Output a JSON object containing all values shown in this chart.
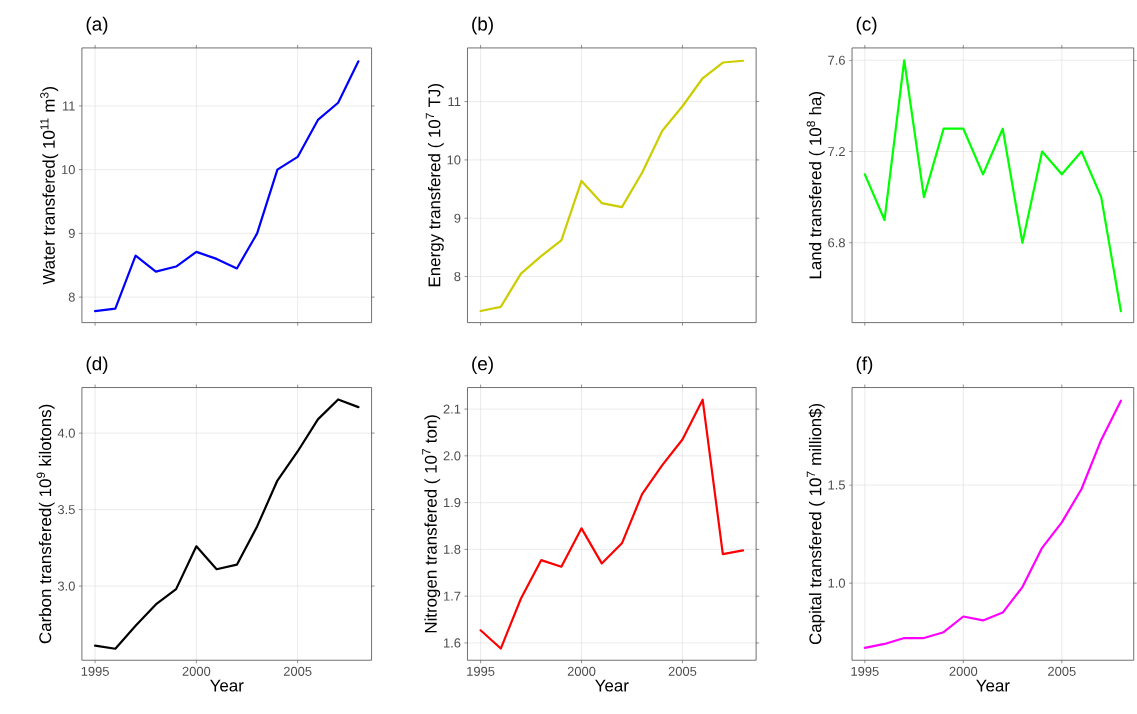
{
  "chart_data": [
    {
      "type": "line",
      "title": "(a)",
      "ylabel": "Water transfered( 10$^{11}$ m$^{3}$)",
      "x": [
        1995,
        1996,
        1997,
        1998,
        1999,
        2000,
        2001,
        2002,
        2003,
        2004,
        2005,
        2006,
        2007,
        2008
      ],
      "series": [
        {
          "color": "#0000ff",
          "values": [
            7.78,
            7.82,
            8.65,
            8.4,
            8.48,
            8.71,
            8.6,
            8.45,
            9.0,
            10.0,
            10.2,
            10.78,
            11.05,
            11.7
          ]
        }
      ],
      "xlim": [
        1994.35,
        2008.65
      ],
      "ylim": [
        7.6,
        11.91
      ],
      "xticks": [
        1995,
        2000,
        2005
      ],
      "yticks": [
        8,
        9,
        10,
        11
      ],
      "grid": true,
      "tick_labels": "y"
    },
    {
      "type": "line",
      "title": "(b)",
      "ylabel": "Energy transfered ( 10$^{7}$ TJ)",
      "x": [
        1995,
        1996,
        1997,
        1998,
        1999,
        2000,
        2001,
        2002,
        2003,
        2004,
        2005,
        2006,
        2007,
        2008
      ],
      "series": [
        {
          "color": "#cccc00",
          "values": [
            7.41,
            7.48,
            8.05,
            8.35,
            8.62,
            9.64,
            9.26,
            9.19,
            9.78,
            10.5,
            10.92,
            11.4,
            11.67,
            11.7
          ]
        }
      ],
      "xlim": [
        1994.35,
        2008.65
      ],
      "ylim": [
        7.21,
        11.92
      ],
      "xticks": [
        1995,
        2000,
        2005
      ],
      "yticks": [
        8,
        9,
        10,
        11
      ],
      "grid": true,
      "tick_labels": "y"
    },
    {
      "type": "line",
      "title": "(c)",
      "ylabel": "Land transfered ( 10$^{8}$ ha)",
      "x": [
        1995,
        1996,
        1997,
        1998,
        1999,
        2000,
        2001,
        2002,
        2003,
        2004,
        2005,
        2006,
        2007,
        2008
      ],
      "series": [
        {
          "color": "#00ff00",
          "values": [
            7.1,
            6.9,
            7.6,
            7.0,
            7.3,
            7.3,
            7.1,
            7.3,
            6.8,
            7.2,
            7.1,
            7.2,
            7.0,
            6.5
          ]
        }
      ],
      "xlim": [
        1994.35,
        2008.65
      ],
      "ylim": [
        6.45,
        7.654
      ],
      "xticks": [
        1995,
        2000,
        2005
      ],
      "yticks": [
        6.8,
        7.2,
        7.6
      ],
      "grid": true,
      "tick_labels": "y"
    },
    {
      "type": "line",
      "title": "(d)",
      "xlabel": "Year",
      "ylabel": "Carbon transfered( 10$^{9}$ kilotons)",
      "x": [
        1995,
        1996,
        1997,
        1998,
        1999,
        2000,
        2001,
        2002,
        2003,
        2004,
        2005,
        2006,
        2007,
        2008
      ],
      "series": [
        {
          "color": "#000000",
          "values": [
            2.61,
            2.59,
            2.74,
            2.88,
            2.98,
            3.26,
            3.11,
            3.14,
            3.39,
            3.69,
            3.88,
            4.09,
            4.22,
            4.17
          ]
        }
      ],
      "xlim": [
        1994.35,
        2008.65
      ],
      "ylim": [
        2.515,
        4.298
      ],
      "xticks": [
        1995,
        2000,
        2005
      ],
      "yticks": [
        {
          "value": 3,
          "label": "3.0"
        },
        3.5,
        {
          "value": 4,
          "label": "4.0"
        }
      ],
      "grid": true
    },
    {
      "type": "line",
      "title": "(e)",
      "xlabel": "Year",
      "ylabel": "Nitrogen transfered ( 10$^{7}$ ton)",
      "x": [
        1995,
        1996,
        1997,
        1998,
        1999,
        2000,
        2001,
        2002,
        2003,
        2004,
        2005,
        2006,
        2007,
        2008
      ],
      "series": [
        {
          "color": "#ff0000",
          "values": [
            1.627,
            1.588,
            1.695,
            1.777,
            1.763,
            1.845,
            1.77,
            1.813,
            1.918,
            1.98,
            2.035,
            2.12,
            1.79,
            1.798
          ]
        }
      ],
      "xlim": [
        1994.35,
        2008.65
      ],
      "ylim": [
        1.563,
        2.146
      ],
      "xticks": [
        1995,
        2000,
        2005
      ],
      "yticks": [
        1.6,
        1.7,
        1.8,
        1.9,
        {
          "value": 2,
          "label": "2.0"
        },
        2.1
      ],
      "grid": true
    },
    {
      "type": "line",
      "title": "(f)",
      "xlabel": "Year",
      "ylabel": "Capital transfered ( 10$^{7}$ million$)",
      "x": [
        1995,
        1996,
        1997,
        1998,
        1999,
        2000,
        2001,
        2002,
        2003,
        2004,
        2005,
        2006,
        2007,
        2008
      ],
      "series": [
        {
          "color": "#ff00ff",
          "values": [
            0.67,
            0.69,
            0.72,
            0.72,
            0.75,
            0.83,
            0.81,
            0.85,
            0.98,
            1.18,
            1.31,
            1.48,
            1.73,
            1.93
          ]
        }
      ],
      "xlim": [
        1994.35,
        2008.65
      ],
      "ylim": [
        0.607,
        1.997
      ],
      "xticks": [
        1995,
        2000,
        2005
      ],
      "yticks": [
        {
          "value": 1,
          "label": "1.0"
        },
        1.5
      ],
      "grid": true
    }
  ]
}
